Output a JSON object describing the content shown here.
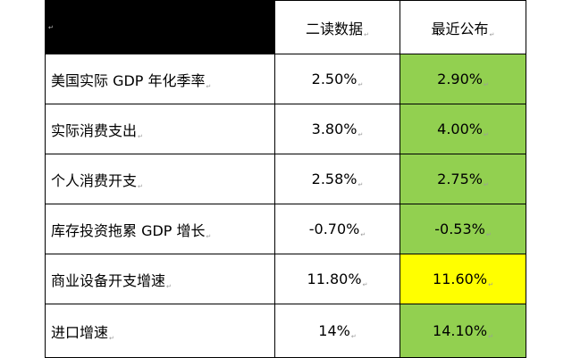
{
  "table": {
    "header": {
      "col2": "二读数据",
      "col3": "最近公布"
    },
    "paragraph_mark": "↵",
    "colors": {
      "header_black": "#000000",
      "green": "#92D050",
      "yellow": "#FFFF00",
      "white": "#FFFFFF"
    },
    "rows": [
      {
        "label": "美国实际 GDP 年化季率",
        "second_reading": "2.50%",
        "latest": "2.90%",
        "latest_fill": "green"
      },
      {
        "label": "实际消费支出",
        "second_reading": "3.80%",
        "latest": "4.00%",
        "latest_fill": "green"
      },
      {
        "label": "个人消费开支",
        "second_reading": "2.58%",
        "latest": "2.75%",
        "latest_fill": "green"
      },
      {
        "label": "库存投资拖累 GDP 增长",
        "second_reading": "-0.70%",
        "latest": "-0.53%",
        "latest_fill": "green"
      },
      {
        "label": "商业设备开支增速",
        "second_reading": "11.80%",
        "latest": "11.60%",
        "latest_fill": "yellow"
      },
      {
        "label": "进口增速",
        "second_reading": "14%",
        "latest": "14.10%",
        "latest_fill": "green"
      }
    ]
  }
}
